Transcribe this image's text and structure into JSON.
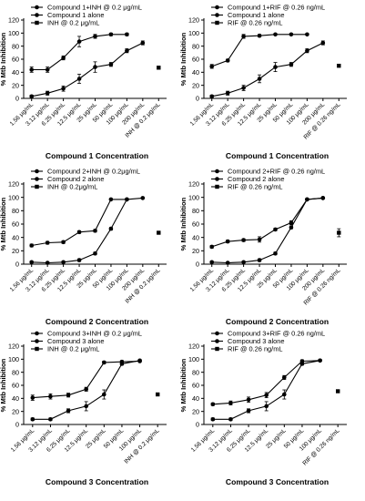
{
  "figure": {
    "background": "#ffffff",
    "line_color": "#000000"
  },
  "chart_data": [
    {
      "type": "line",
      "title": "",
      "xlabel": "Compound 1 Concentration",
      "ylabel": "% Mtb Inhibition",
      "ylim": [
        0,
        120
      ],
      "yticks": [
        0,
        20,
        40,
        60,
        80,
        100,
        120
      ],
      "grid": false,
      "legend": "top-left",
      "categories": [
        "1.56 μg/mL",
        "3.12 μg/mL",
        "6.25 μg/mL",
        "12.5 μg/mL",
        "25 μg/mL",
        "50 μg/mL",
        "100 μg/mL",
        "200 μg/mL",
        "INH @ 0.2 μg/mL"
      ],
      "series": [
        {
          "name": "Compound 1+INH @ 0.2 μg/mL",
          "marker": "circle",
          "values": [
            44,
            44,
            62,
            87,
            95,
            98,
            98,
            null,
            null
          ],
          "errors": [
            4,
            4,
            3,
            8,
            3,
            2,
            2,
            null,
            null
          ]
        },
        {
          "name": "Compound 1 alone",
          "marker": "circle",
          "values": [
            3,
            8,
            15,
            30,
            48,
            52,
            73,
            85,
            null
          ],
          "errors": [
            2,
            3,
            4,
            7,
            8,
            3,
            3,
            3,
            null
          ]
        },
        {
          "name": "INH @ 0.2 μg/mL",
          "marker": "square",
          "values": [
            null,
            null,
            null,
            null,
            null,
            null,
            null,
            null,
            47
          ],
          "errors": [
            null,
            null,
            null,
            null,
            null,
            null,
            null,
            null,
            2
          ]
        }
      ]
    },
    {
      "type": "line",
      "title": "",
      "xlabel": "Compound 1 Concentration",
      "ylabel": "% Mtb Inhibition",
      "ylim": [
        0,
        120
      ],
      "yticks": [
        0,
        20,
        40,
        60,
        80,
        100,
        120
      ],
      "grid": false,
      "legend": "top-left",
      "categories": [
        "1.56 μg/mL",
        "3.12 μg/mL",
        "6.25 μg/mL",
        "12.5 μg/mL",
        "25 μg/mL",
        "50 μg/mL",
        "100 μg/mL",
        "200 μg/mL",
        "RIF @ 0.26 ng/mL"
      ],
      "series": [
        {
          "name": "Compound 1+RIF @ 0.26 ng/mL",
          "marker": "circle",
          "values": [
            49,
            58,
            95,
            96,
            98,
            98,
            98,
            null,
            null
          ],
          "errors": [
            3,
            2,
            3,
            2,
            1,
            1,
            1,
            null,
            null
          ]
        },
        {
          "name": "Compound 1 alone",
          "marker": "circle",
          "values": [
            3,
            8,
            16,
            30,
            48,
            52,
            73,
            85,
            null
          ],
          "errors": [
            2,
            3,
            4,
            6,
            7,
            3,
            3,
            3,
            null
          ]
        },
        {
          "name": "RIF @ 0.26 ng/mL",
          "marker": "square",
          "values": [
            null,
            null,
            null,
            null,
            null,
            null,
            null,
            null,
            50
          ],
          "errors": [
            null,
            null,
            null,
            null,
            null,
            null,
            null,
            null,
            2
          ]
        }
      ]
    },
    {
      "type": "line",
      "title": "",
      "xlabel": "Compound 2 Concentration",
      "ylabel": "% Mtb Inhibition",
      "ylim": [
        0,
        120
      ],
      "yticks": [
        0,
        20,
        40,
        60,
        80,
        100,
        120
      ],
      "grid": false,
      "legend": "top-left",
      "categories": [
        "1.56 μg/mL",
        "3.12 μg/mL",
        "6.25 μg/mL",
        "12.5 μg/mL",
        "25 μg/mL",
        "50 μg/mL",
        "100 μg/mL",
        "200 μg/mL",
        "INH @ 0.2 μg/mL"
      ],
      "series": [
        {
          "name": "Compound 2+INH @ 0.2μg/mL",
          "marker": "circle",
          "values": [
            28,
            32,
            33,
            48,
            50,
            97,
            97,
            null,
            null
          ],
          "errors": [
            2,
            2,
            2,
            2,
            2,
            1,
            1,
            null,
            null
          ]
        },
        {
          "name": "Compound 2 alone",
          "marker": "circle",
          "values": [
            3,
            2,
            3,
            6,
            16,
            53,
            97,
            99,
            null
          ],
          "errors": [
            1,
            1,
            1,
            2,
            2,
            2,
            1,
            1,
            null
          ]
        },
        {
          "name": "INH @ 0.2μg/mL",
          "marker": "square",
          "values": [
            null,
            null,
            null,
            null,
            null,
            null,
            null,
            null,
            47
          ],
          "errors": [
            null,
            null,
            null,
            null,
            null,
            null,
            null,
            null,
            1
          ]
        }
      ]
    },
    {
      "type": "line",
      "title": "",
      "xlabel": "Compound 2 Concentration",
      "ylabel": "% Mtb Inhibition",
      "ylim": [
        0,
        120
      ],
      "yticks": [
        0,
        20,
        40,
        60,
        80,
        100,
        120
      ],
      "grid": false,
      "legend": "top-left",
      "categories": [
        "1.56 μg/mL",
        "3.12 μg/mL",
        "6.25 μg/mL",
        "12.5 μg/mL",
        "25 μg/mL",
        "50 μg/mL",
        "100 μg/mL",
        "200 μg/mL",
        "RIF @ 0.26 ng/mL"
      ],
      "series": [
        {
          "name": "Compound 2+RIF @ 0.26 ng/mL",
          "marker": "circle",
          "values": [
            26,
            34,
            36,
            37,
            52,
            62,
            97,
            99,
            null
          ],
          "errors": [
            2,
            2,
            2,
            4,
            2,
            3,
            1,
            1,
            null
          ]
        },
        {
          "name": "Compound 2 alone",
          "marker": "circle",
          "values": [
            3,
            2,
            3,
            6,
            16,
            55,
            97,
            99,
            null
          ],
          "errors": [
            1,
            1,
            1,
            2,
            2,
            2,
            1,
            1,
            null
          ]
        },
        {
          "name": "RIF @ 0.26 ng/mL",
          "marker": "square",
          "values": [
            null,
            null,
            null,
            null,
            null,
            null,
            null,
            null,
            47
          ],
          "errors": [
            null,
            null,
            null,
            null,
            null,
            null,
            null,
            null,
            6
          ]
        }
      ]
    },
    {
      "type": "line",
      "title": "",
      "xlabel": "Compound 3 Concentration",
      "ylabel": "% Mtb Inhibition",
      "ylim": [
        0,
        120
      ],
      "yticks": [
        0,
        20,
        40,
        60,
        80,
        100,
        120
      ],
      "grid": false,
      "legend": "top-left",
      "categories": [
        "1.56 μg/mL",
        "3.12 μg/mL",
        "6.25 μg/mL",
        "12.5 μg/mL",
        "25 μg/mL",
        "50 μg/mL",
        "100 μg/mL",
        "INH @ 0.2 μg/mL"
      ],
      "series": [
        {
          "name": "Compound 3+INH @ 0.2 μg/mL",
          "marker": "circle",
          "values": [
            41,
            43,
            45,
            54,
            95,
            96,
            97,
            null
          ],
          "errors": [
            4,
            4,
            3,
            3,
            2,
            2,
            1,
            null
          ]
        },
        {
          "name": "Compound 3 alone",
          "marker": "circle",
          "values": [
            8,
            8,
            21,
            28,
            46,
            93,
            98,
            null
          ],
          "errors": [
            2,
            2,
            3,
            7,
            7,
            2,
            1,
            null
          ]
        },
        {
          "name": "INH @ 0.2 μg/mL",
          "marker": "square",
          "values": [
            null,
            null,
            null,
            null,
            null,
            null,
            null,
            46
          ],
          "errors": [
            null,
            null,
            null,
            null,
            null,
            null,
            null,
            1
          ]
        }
      ]
    },
    {
      "type": "line",
      "title": "",
      "xlabel": "Compound 3 Concentration",
      "ylabel": "% Mtb Inhibition",
      "ylim": [
        0,
        120
      ],
      "yticks": [
        0,
        20,
        40,
        60,
        80,
        100,
        120
      ],
      "grid": false,
      "legend": "top-left",
      "categories": [
        "1.56 μg/mL",
        "3.12 μg/mL",
        "6.25 μg/mL",
        "12.5 μg/mL",
        "25 μg/mL",
        "50 μg/mL",
        "100 μg/mL",
        "RIF @ 0.26 ng/mL"
      ],
      "series": [
        {
          "name": "Compound 3+RIF @ 0.26 ng/mL",
          "marker": "circle",
          "values": [
            31,
            33,
            38,
            45,
            72,
            97,
            98,
            null
          ],
          "errors": [
            2,
            3,
            4,
            4,
            3,
            2,
            1,
            null
          ]
        },
        {
          "name": "Compound 3 alone",
          "marker": "circle",
          "values": [
            8,
            8,
            21,
            28,
            46,
            93,
            98,
            null
          ],
          "errors": [
            2,
            2,
            3,
            7,
            7,
            2,
            1,
            null
          ]
        },
        {
          "name": "RIF @ 0.26 ng/mL",
          "marker": "square",
          "values": [
            null,
            null,
            null,
            null,
            null,
            null,
            null,
            51
          ],
          "errors": [
            null,
            null,
            null,
            null,
            null,
            null,
            null,
            1
          ]
        }
      ]
    }
  ]
}
